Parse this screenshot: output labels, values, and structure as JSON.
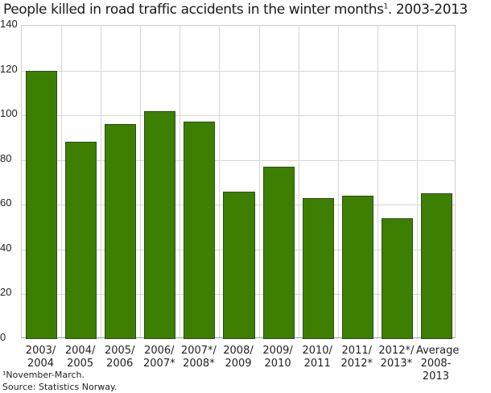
{
  "title": "People killed in road traffic accidents in the winter months",
  "title_sup": "1",
  "title_suffix": ". 2003-2013",
  "footnote": "¹November-March.",
  "source": "Source: Statistics Norway.",
  "colors": {
    "bar": "#3d7f00",
    "bar_border": "#2b4f16",
    "grid": "#d6d6d6"
  },
  "chart_data": {
    "type": "bar",
    "title": "People killed in road traffic accidents in the winter months¹. 2003-2013",
    "xlabel": "",
    "ylabel": "",
    "ylim": [
      0,
      140
    ],
    "yticks": [
      0,
      20,
      40,
      60,
      80,
      100,
      120,
      140
    ],
    "grid": true,
    "legend": null,
    "categories": [
      "2003/\n2004",
      "2004/\n2005",
      "2005/\n2006",
      "2006/\n2007*",
      "2007*/\n2008*",
      "2008/\n2009",
      "2009/\n2010",
      "2010/\n2011",
      "2011/\n2012*",
      "2012*/\n2013*",
      "Average\n2008-\n2013"
    ],
    "values": [
      120,
      88,
      96,
      102,
      97,
      66,
      77,
      63,
      64,
      54,
      65
    ]
  }
}
